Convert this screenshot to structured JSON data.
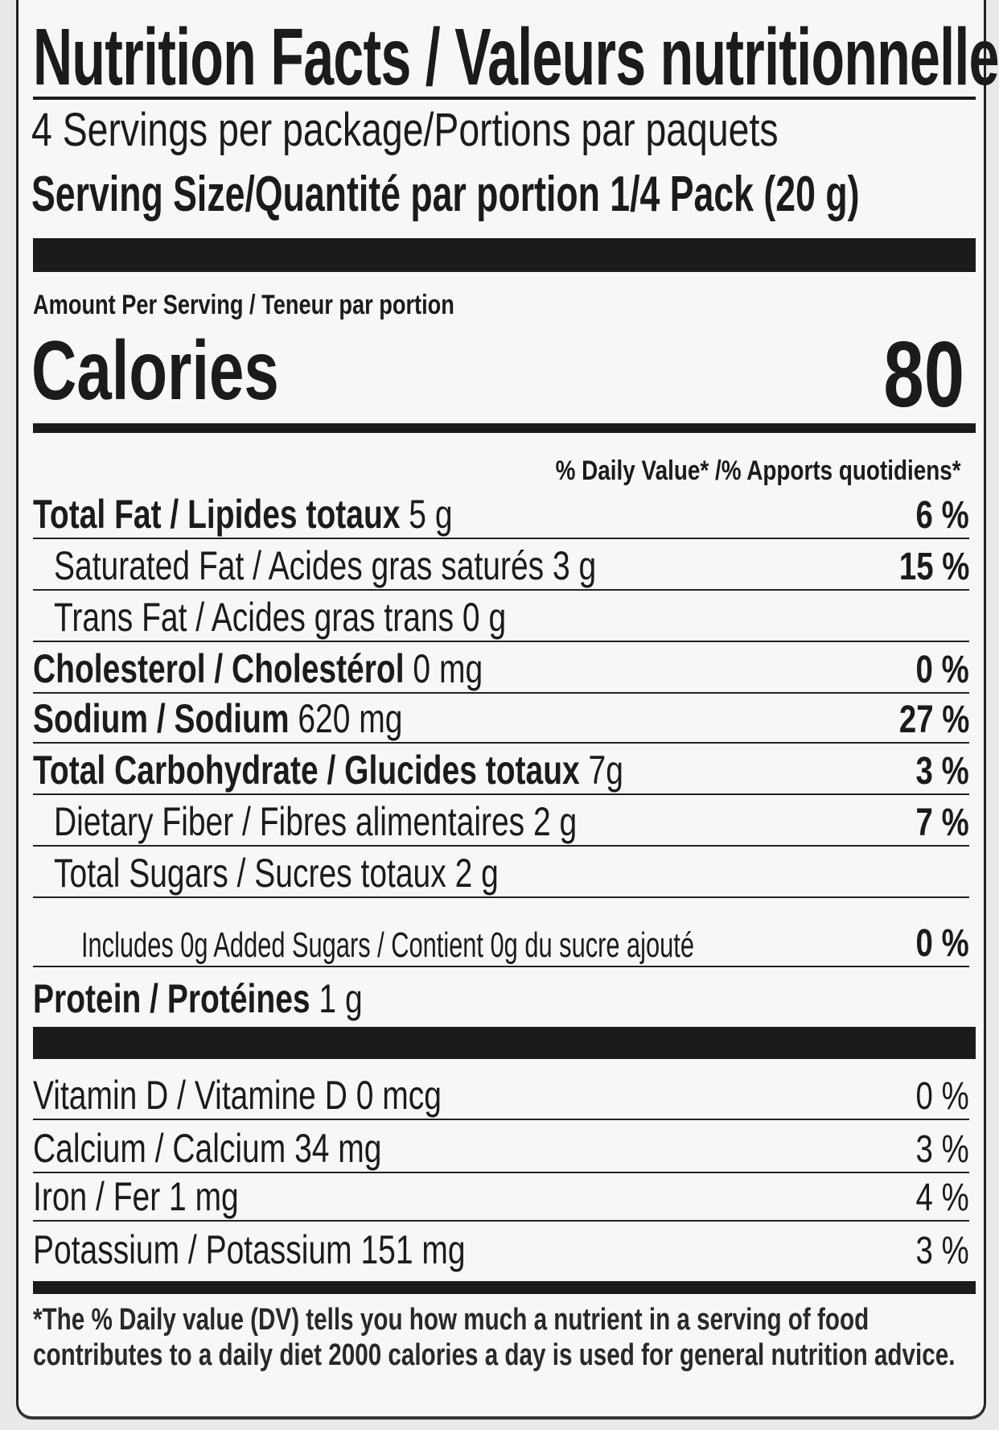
{
  "title": "Nutrition Facts / Valeurs nutritionnelles",
  "servings_per_package": "4 Servings per package/Portions par paquets",
  "serving_size": "Serving Size/Quantité par portion 1/4 Pack (20 g)",
  "amount_per_serving": "Amount Per Serving / Teneur par portion",
  "calories_label": "Calories",
  "calories_value": "80",
  "daily_value_header": "% Daily Value* /% Apports quotidiens*",
  "nutrients": [
    {
      "bold": "Total Fat / Lipides totaux",
      "amount": " 5 g",
      "dv": "6 %"
    },
    {
      "bold": "",
      "amount": "Saturated Fat / Acides gras saturés 3 g",
      "dv": "15 %"
    },
    {
      "bold": "",
      "amount": "Trans Fat / Acides gras trans  0 g",
      "dv": ""
    },
    {
      "bold": "Cholesterol / Cholestérol",
      "amount": " 0 mg",
      "dv": "0 %"
    },
    {
      "bold": "Sodium / Sodium",
      "amount": " 620 mg",
      "dv": "27 %"
    },
    {
      "bold": "Total Carbohydrate / Glucides totaux",
      "amount": " 7g",
      "dv": "3 %"
    },
    {
      "bold": "",
      "amount": "Dietary Fiber / Fibres alimentaires 2 g",
      "dv": "7 %"
    },
    {
      "bold": "",
      "amount": "Total Sugars / Sucres totaux 2 g",
      "dv": ""
    },
    {
      "bold": "",
      "amount": "Includes 0g Added Sugars / Contient 0g du sucre ajouté",
      "dv": "0 %"
    },
    {
      "bold": "Protein / Protéines",
      "amount": " 1 g",
      "dv": ""
    }
  ],
  "vitamins": [
    {
      "name": "Vitamin D / Vitamine D 0 mcg",
      "dv": "0 %"
    },
    {
      "name": "Calcium / Calcium 34 mg",
      "dv": "3 %"
    },
    {
      "name": "Iron / Fer 1 mg",
      "dv": "4 %"
    },
    {
      "name": "Potassium / Potassium 151 mg",
      "dv": "3 %"
    }
  ],
  "footnote": "*The % Daily value (DV) tells you how much a nutrient in a serving of food contributes to a daily diet 2000 calories a day is used for general nutrition advice."
}
